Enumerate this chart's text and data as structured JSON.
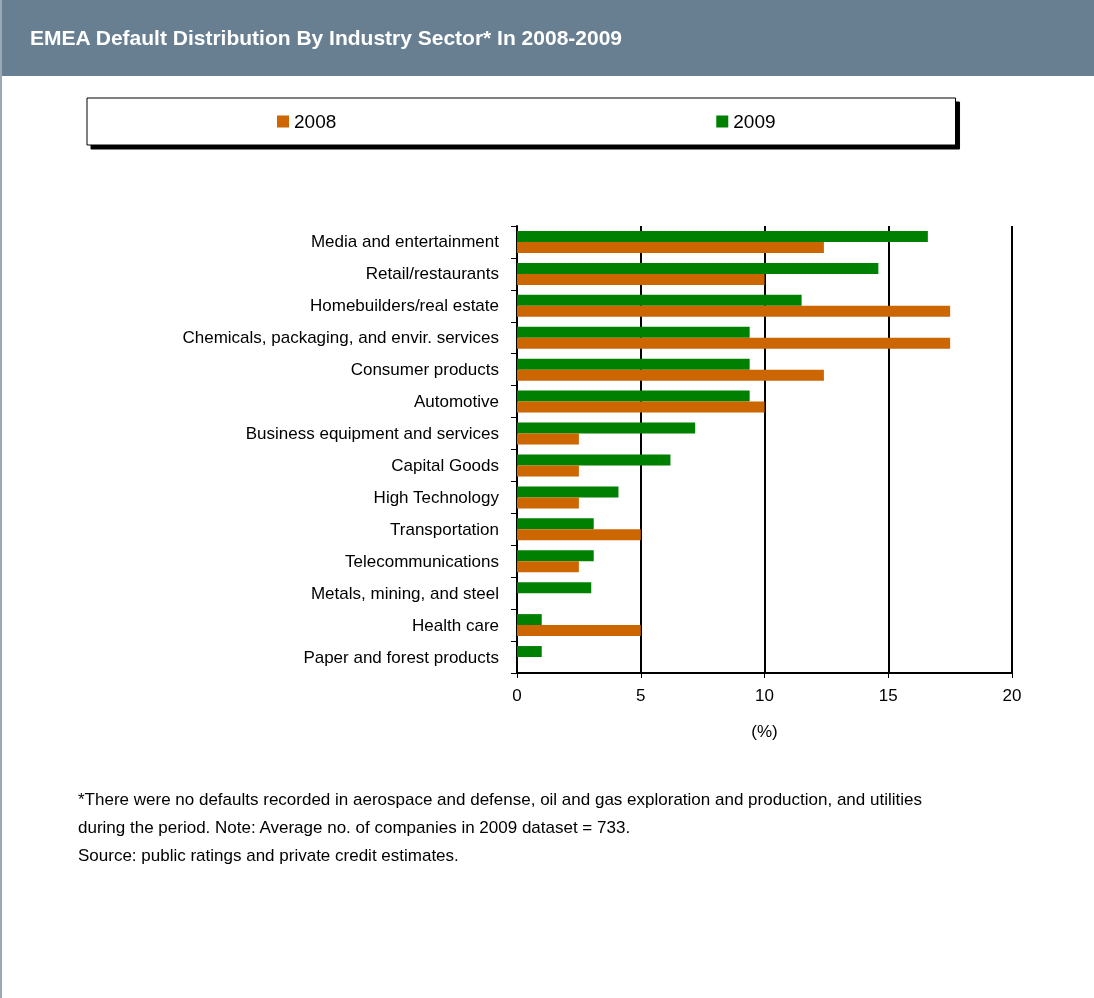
{
  "chart_data": {
    "type": "bar",
    "orientation": "horizontal",
    "title": "EMEA Default Distribution By Industry Sector* In 2008-2009",
    "xlabel": "(%)",
    "categories": [
      "Media and entertainment",
      "Retail/restaurants",
      "Homebuilders/real estate",
      "Chemicals, packaging, and envir. services",
      "Consumer products",
      "Automotive",
      "Business equipment and services",
      "Capital Goods",
      "High Technology",
      "Transportation",
      "Telecommunications",
      "Metals, mining, and steel",
      "Health care",
      "Paper and forest products"
    ],
    "series": [
      {
        "name": "2008",
        "color": "#cc6600",
        "values": [
          12.4,
          10,
          17.5,
          17.5,
          12.4,
          10,
          2.5,
          2.5,
          2.5,
          5,
          2.5,
          0,
          5,
          0
        ]
      },
      {
        "name": "2009",
        "color": "#008000",
        "values": [
          16.6,
          14.6,
          11.5,
          9.4,
          9.4,
          9.4,
          7.2,
          6.2,
          4.1,
          3.1,
          3.1,
          3.0,
          1.0,
          1.0
        ]
      }
    ],
    "xlim": [
      0,
      20
    ],
    "xticks": [
      0,
      5,
      10,
      15,
      20
    ],
    "grid": "x",
    "legend": "top",
    "annotations": [
      "*There were no defaults recorded in aerospace and defense, oil and gas exploration and production, and utilities during the period. Note: Average no. of companies in 2009 dataset = 733.",
      "Source: public ratings and private credit estimates."
    ]
  }
}
